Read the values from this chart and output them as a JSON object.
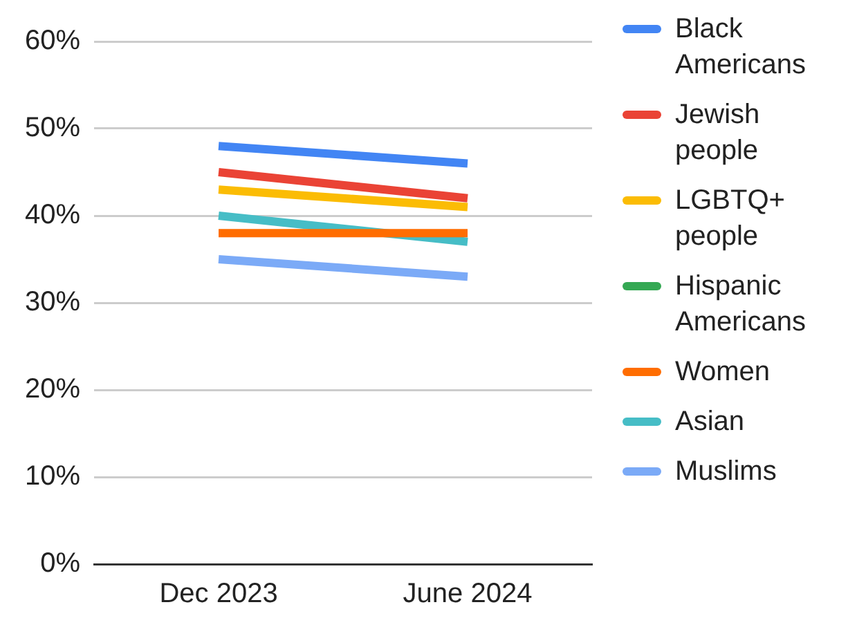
{
  "chart_data": {
    "type": "line",
    "categories": [
      "Dec 2023",
      "June 2024"
    ],
    "series": [
      {
        "name": "Black Americans",
        "color": "#4285f4",
        "values": [
          48,
          46
        ]
      },
      {
        "name": "Jewish people",
        "color": "#ea4335",
        "values": [
          45,
          42
        ]
      },
      {
        "name": "LGBTQ+ people",
        "color": "#fbbc04",
        "values": [
          43,
          41
        ]
      },
      {
        "name": "Hispanic Americans",
        "color": "#34a853",
        "values": [
          null,
          null
        ]
      },
      {
        "name": "Women",
        "color": "#ff6d01",
        "values": [
          38,
          38
        ]
      },
      {
        "name": "Asian",
        "color": "#46bdc6",
        "values": [
          40,
          37
        ]
      },
      {
        "name": "Muslims",
        "color": "#7baaf7",
        "values": [
          35,
          33
        ]
      }
    ],
    "ylim": [
      0,
      60
    ],
    "yticks": [
      {
        "value": 0,
        "label": "0%"
      },
      {
        "value": 10,
        "label": "10%"
      },
      {
        "value": 20,
        "label": "20%"
      },
      {
        "value": 30,
        "label": "30%"
      },
      {
        "value": 40,
        "label": "40%"
      },
      {
        "value": 50,
        "label": "50%"
      },
      {
        "value": 60,
        "label": "60%"
      }
    ],
    "grid": "y",
    "legend": "right",
    "marker": "none",
    "line_style": "solid"
  }
}
